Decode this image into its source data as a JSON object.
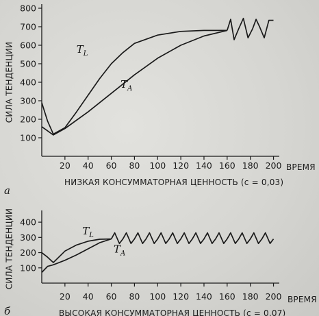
{
  "chart_data": [
    {
      "type": "line",
      "panel_label": "а",
      "xlabel": "ВРЕМЯ",
      "ylabel": "СИЛА ТЕНДЕНЦИИ",
      "caption": "НИЗКАЯ КОНСУММАТОРНАЯ ЦЕННОСТЬ (с = 0,03)",
      "x_ticks": [
        20,
        40,
        60,
        80,
        100,
        120,
        140,
        160,
        180,
        200
      ],
      "y_ticks": [
        100,
        200,
        300,
        400,
        500,
        600,
        700,
        800
      ],
      "xlim": [
        0,
        205
      ],
      "ylim": [
        0,
        800
      ],
      "series": [
        {
          "name": "T_L",
          "x": [
            0,
            5,
            10,
            20,
            30,
            40,
            50,
            60,
            70,
            80,
            100,
            120,
            140,
            160
          ],
          "y": [
            290,
            190,
            120,
            155,
            240,
            330,
            420,
            500,
            560,
            610,
            655,
            675,
            680,
            680
          ]
        },
        {
          "name": "T_A",
          "x": [
            0,
            10,
            20,
            40,
            60,
            80,
            100,
            120,
            140,
            160
          ],
          "y": [
            160,
            115,
            150,
            240,
            340,
            440,
            530,
            600,
            650,
            680
          ]
        },
        {
          "name": "oscillation",
          "x": [
            160,
            163,
            166,
            170,
            174,
            178,
            182,
            185,
            188,
            192,
            196,
            200
          ],
          "y": [
            680,
            740,
            630,
            690,
            745,
            640,
            690,
            740,
            700,
            640,
            735,
            735
          ]
        }
      ],
      "annotations": [
        {
          "text": "T",
          "sub": "L",
          "x": 30,
          "y": 560
        },
        {
          "text": "T",
          "sub": "A",
          "x": 68,
          "y": 370
        }
      ]
    },
    {
      "type": "line",
      "panel_label": "б",
      "xlabel": "ВРЕМЯ",
      "ylabel": "СИЛА ТЕНДЕНЦИИ",
      "caption": "ВЫСОКАЯ КОНСУММАТОРНАЯ ЦЕННОСТЬ (с = 0,07)",
      "x_ticks": [
        20,
        40,
        60,
        80,
        100,
        120,
        140,
        160,
        180,
        200
      ],
      "y_ticks": [
        100,
        200,
        300,
        400
      ],
      "xlim": [
        0,
        205
      ],
      "ylim": [
        0,
        450
      ],
      "series": [
        {
          "name": "T_L",
          "x": [
            0,
            5,
            10,
            20,
            30,
            40,
            50,
            60
          ],
          "y": [
            200,
            170,
            135,
            210,
            250,
            275,
            288,
            290
          ]
        },
        {
          "name": "T_A",
          "x": [
            0,
            5,
            10,
            20,
            30,
            40,
            50,
            60
          ],
          "y": [
            70,
            110,
            120,
            150,
            185,
            225,
            265,
            290
          ]
        },
        {
          "name": "oscillation",
          "x": [
            60,
            63,
            67,
            70,
            73,
            77,
            80,
            83,
            87,
            90,
            93,
            97,
            100,
            103,
            107,
            110,
            113,
            117,
            120,
            123,
            127,
            130,
            133,
            137,
            140,
            143,
            147,
            150,
            153,
            157,
            160,
            163,
            167,
            170,
            173,
            177,
            180,
            183,
            187,
            190,
            193,
            197,
            200
          ],
          "y": [
            290,
            330,
            260,
            290,
            330,
            260,
            290,
            330,
            260,
            290,
            330,
            260,
            290,
            330,
            260,
            290,
            330,
            260,
            290,
            330,
            260,
            290,
            330,
            260,
            290,
            330,
            260,
            290,
            330,
            260,
            290,
            330,
            260,
            290,
            330,
            260,
            290,
            330,
            260,
            290,
            330,
            260,
            290
          ]
        }
      ],
      "annotations": [
        {
          "text": "T",
          "sub": "L",
          "x": 35,
          "y": 320
        },
        {
          "text": "T",
          "sub": "A",
          "x": 62,
          "y": 200
        }
      ]
    }
  ]
}
